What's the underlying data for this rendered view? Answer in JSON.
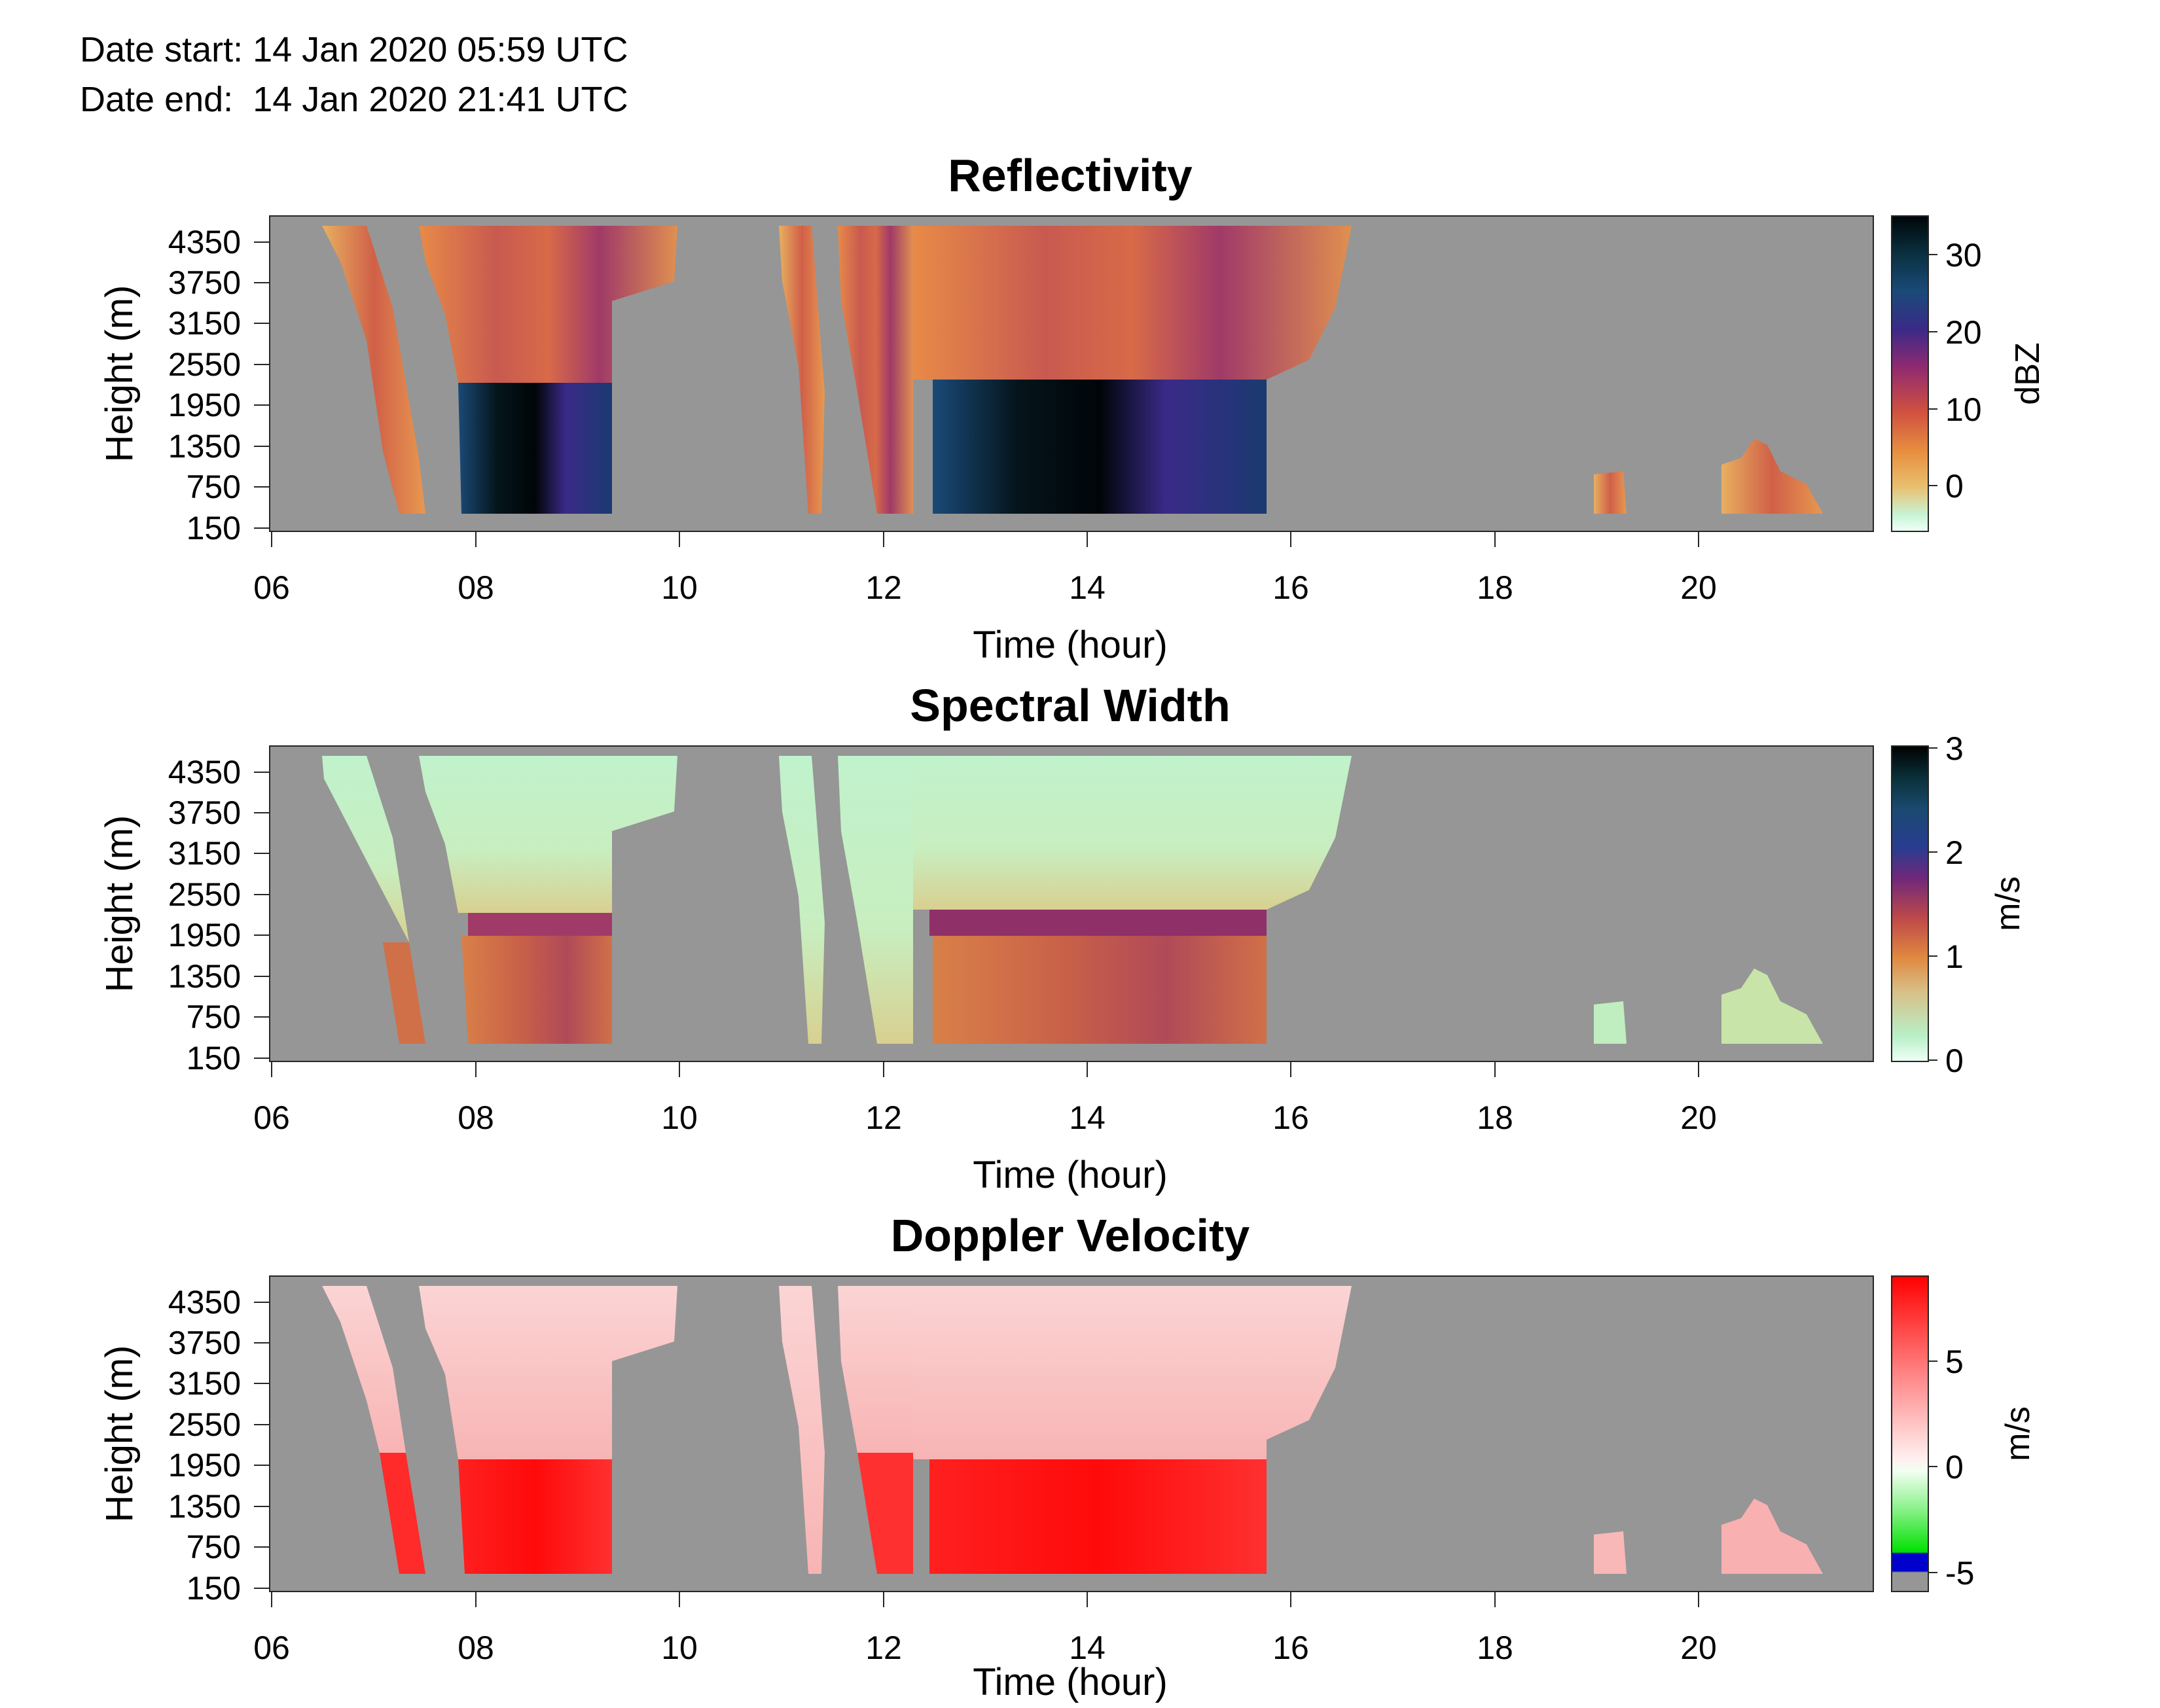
{
  "header": {
    "date_start_label": "Date start:",
    "date_start_value": "14 Jan 2020 05:59 UTC",
    "date_end_label": "Date end:",
    "date_end_value": "14 Jan 2020 21:41 UTC"
  },
  "chart_data": [
    {
      "type": "heatmap",
      "title": "Reflectivity",
      "xlabel": "Time (hour)",
      "ylabel": "Height (m)",
      "xlim": [
        6,
        21.7
      ],
      "ylim": [
        150,
        4500
      ],
      "x_ticks": [
        "06",
        "08",
        "10",
        "12",
        "14",
        "16",
        "18",
        "20"
      ],
      "y_ticks": [
        "4350",
        "3750",
        "3150",
        "2550",
        "1950",
        "1350",
        "750",
        "150"
      ],
      "colorbar": {
        "label": "dBZ",
        "ticks": [
          "30",
          "20",
          "10",
          "0"
        ],
        "range": [
          -6,
          35
        ]
      },
      "background_color": "#969696",
      "echo_regions": [
        {
          "x": [
            6.5,
            7.6
          ],
          "y": [
            450,
            4500
          ]
        },
        {
          "x": [
            7.5,
            9.35
          ],
          "y": [
            450,
            4500
          ]
        },
        {
          "x": [
            9.35,
            10.0
          ],
          "y": [
            3600,
            4500
          ]
        },
        {
          "x": [
            11.0,
            11.45
          ],
          "y": [
            450,
            4500
          ]
        },
        {
          "x": [
            11.5,
            12.25
          ],
          "y": [
            450,
            4500
          ]
        },
        {
          "x": [
            12.25,
            15.7
          ],
          "y": [
            450,
            4500
          ]
        },
        {
          "x": [
            15.7,
            16.6
          ],
          "y": [
            2400,
            4500
          ]
        },
        {
          "x": [
            19.0,
            19.3
          ],
          "y": [
            450,
            900
          ]
        },
        {
          "x": [
            20.2,
            21.2
          ],
          "y": [
            450,
            1450
          ]
        }
      ]
    },
    {
      "type": "heatmap",
      "title": "Spectral Width",
      "xlabel": "Time (hour)",
      "ylabel": "Height (m)",
      "xlim": [
        6,
        21.7
      ],
      "ylim": [
        150,
        4500
      ],
      "x_ticks": [
        "06",
        "08",
        "10",
        "12",
        "14",
        "16",
        "18",
        "20"
      ],
      "y_ticks": [
        "4350",
        "3750",
        "3150",
        "2550",
        "1950",
        "1350",
        "750",
        "150"
      ],
      "colorbar": {
        "label": "m/s",
        "ticks": [
          "3",
          "2",
          "1",
          "0"
        ],
        "range": [
          0,
          3
        ]
      },
      "background_color": "#969696"
    },
    {
      "type": "heatmap",
      "title": "Doppler Velocity",
      "xlabel": "Time (hour)",
      "ylabel": "Height (m)",
      "xlim": [
        6,
        21.7
      ],
      "ylim": [
        150,
        4500
      ],
      "x_ticks": [
        "06",
        "08",
        "10",
        "12",
        "14",
        "16",
        "18",
        "20"
      ],
      "y_ticks": [
        "4350",
        "3750",
        "3150",
        "2550",
        "1950",
        "1350",
        "750",
        "150"
      ],
      "colorbar": {
        "label": "m/s",
        "ticks": [
          "5",
          "0",
          "-5"
        ],
        "range": [
          -6,
          9
        ]
      },
      "background_color": "#969696"
    }
  ]
}
